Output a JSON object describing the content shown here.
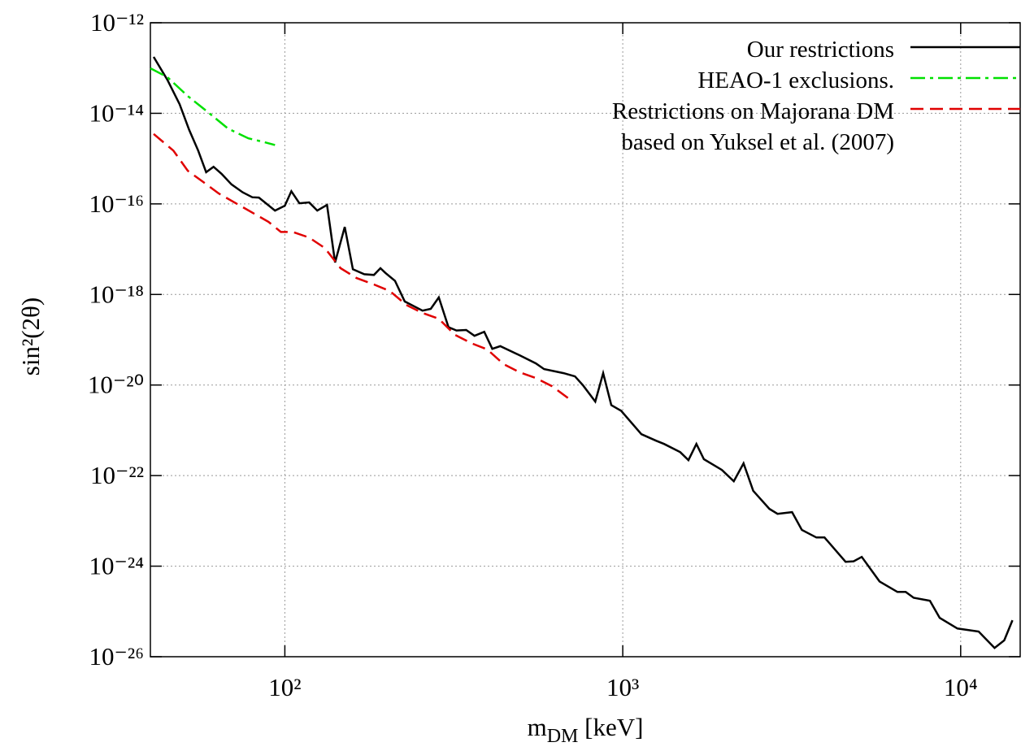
{
  "chart_data": {
    "type": "line",
    "x_label": [
      "m",
      "DM",
      " [keV]"
    ],
    "y_label": "sin²(2θ)",
    "xlog": true,
    "ylog": true,
    "grid": true,
    "legend": "top-right",
    "xlim": [
      40,
      15000
    ],
    "ylim": [
      1e-26,
      1e-12
    ],
    "xticks": [
      {
        "value": 100,
        "label": "10²"
      },
      {
        "value": 1000,
        "label": "10³"
      },
      {
        "value": 10000,
        "label": "10⁴"
      }
    ],
    "yticks": [
      {
        "value": 1e-26,
        "label": "10⁻²⁶"
      },
      {
        "value": 1e-24,
        "label": "10⁻²⁴"
      },
      {
        "value": 1e-22,
        "label": "10⁻²²"
      },
      {
        "value": 1e-20,
        "label": "10⁻²⁰"
      },
      {
        "value": 1e-18,
        "label": "10⁻¹⁸"
      },
      {
        "value": 1e-16,
        "label": "10⁻¹⁶"
      },
      {
        "value": 1e-14,
        "label": "10⁻¹⁴"
      },
      {
        "value": 1e-12,
        "label": "10⁻¹²"
      }
    ],
    "series": [
      {
        "name": "Our restrictions",
        "color": "#000000",
        "dash": "solid",
        "x": [
          40.9,
          44.9,
          48.8,
          52.1,
          55.4,
          58.5,
          61.5,
          65.0,
          69.5,
          75.0,
          80.1,
          83.8,
          93.5,
          100,
          104.5,
          110.4,
          118,
          124.7,
          133.3,
          140.8,
          150.4,
          159,
          171.8,
          183.5,
          191.8,
          198.3,
          211.8,
          226.4,
          255.6,
          270.2,
          285.5,
          305,
          322,
          344,
          364,
          389,
          411,
          434,
          496,
          553,
          585,
          668,
          722,
          763,
          829,
          875,
          925,
          989,
          1135,
          1254,
          1325,
          1479,
          1564,
          1652,
          1738,
          1963,
          2131,
          2277,
          2432,
          2716,
          2871,
          3170,
          3388,
          3741,
          3954,
          4563,
          4822,
          5096,
          5754,
          6500,
          6871,
          7261,
          8110,
          8670,
          9780,
          11300,
          12600,
          13460,
          14230
        ],
        "values": [
          1.76e-13,
          5.5e-14,
          1.6e-14,
          4.3e-15,
          1.5e-15,
          5e-16,
          6.6e-16,
          4.6e-16,
          2.7e-16,
          1.8e-16,
          1.4e-16,
          1.38e-16,
          7.1e-17,
          9.1e-17,
          1.9e-16,
          1.03e-16,
          1.08e-16,
          7.1e-17,
          9.5e-17,
          5.1e-18,
          3.1e-17,
          3.6e-18,
          2.8e-18,
          2.7e-18,
          3.8e-18,
          3e-18,
          2e-18,
          7e-19,
          4.4e-19,
          4.8e-19,
          8.6e-19,
          1.9e-19,
          1.6e-19,
          1.64e-19,
          1.22e-19,
          1.5e-19,
          6.3e-20,
          7.2e-20,
          4.5e-20,
          3e-20,
          2.25e-20,
          1.83e-20,
          1.55e-20,
          9.8e-21,
          4.3e-21,
          1.83e-20,
          3.6e-21,
          2.7e-21,
          8.2e-22,
          5.9e-22,
          5e-22,
          3.3e-22,
          2.2e-22,
          5e-22,
          2.3e-22,
          1.34e-22,
          7.5e-23,
          1.86e-22,
          4.6e-23,
          1.84e-23,
          1.43e-23,
          1.56e-23,
          6.3e-24,
          4.3e-24,
          4.3e-24,
          1.25e-24,
          1.28e-24,
          1.6e-24,
          4.6e-25,
          2.7e-25,
          2.7e-25,
          2e-25,
          1.72e-25,
          7.2e-26,
          4.2e-26,
          3.6e-26,
          1.56e-26,
          2.3e-26,
          6.4e-26
        ]
      },
      {
        "name": "HEAO-1 exclusions.",
        "color": "#00e000",
        "dash": "dash-dot",
        "x": [
          40,
          44.9,
          51.6,
          59.2,
          67.9,
          78,
          87.1,
          93.5
        ],
        "values": [
          9.9e-14,
          6.3e-14,
          2.4e-14,
          1.06e-14,
          4.6e-15,
          2.8e-15,
          2.3e-15,
          2e-15
        ]
      },
      {
        "name": "Restrictions on Majorana DM\nbased on Yuksel et al. (2007)",
        "color": "#e00000",
        "dash": "dash",
        "x": [
          40.9,
          46.8,
          51.6,
          57.5,
          63.7,
          75.9,
          89.5,
          97.3,
          105.7,
          118,
          131.3,
          146.2,
          163,
          183.5,
          204.6,
          228.6,
          255.6,
          285.5,
          318.7,
          356,
          397.4,
          444,
          496,
          553,
          618,
          690
        ],
        "values": [
          3.5e-15,
          1.5e-15,
          5.4e-16,
          3e-16,
          1.7e-16,
          8.1e-17,
          4e-17,
          2.4e-17,
          2.4e-17,
          1.8e-17,
          1.06e-17,
          3.8e-18,
          2.3e-18,
          1.66e-18,
          1.19e-18,
          5.9e-19,
          3.9e-19,
          2.9e-19,
          1.28e-19,
          8.4e-20,
          6.1e-20,
          2.9e-20,
          1.9e-20,
          1.43e-20,
          9.4e-21,
          5.1e-21
        ]
      }
    ]
  }
}
